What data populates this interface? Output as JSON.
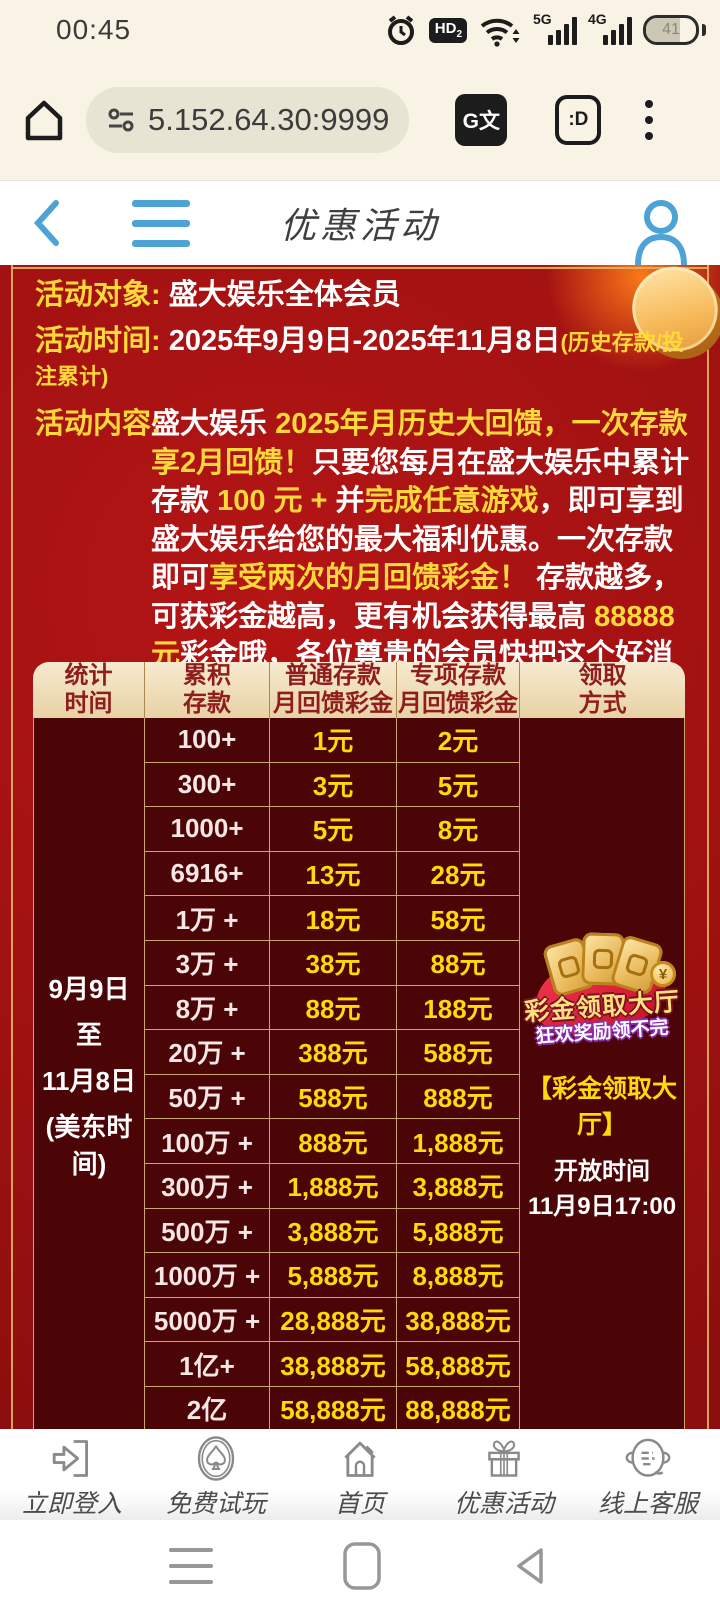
{
  "status_bar": {
    "time": "00:45",
    "hd": "HD",
    "hd_sub": "2",
    "net_a": "5G",
    "net_b": "4G",
    "battery": "41"
  },
  "browser": {
    "url": "5.152.64.30:9999",
    "translate": "G文",
    "tab_count": ":D"
  },
  "page_header": {
    "title": "优惠活动"
  },
  "promo": {
    "target_label": "活动对象:",
    "target_value": "盛大娱乐全体会员",
    "time_label": "活动时间:",
    "time_value": "2025年9月9日-2025年11月8日",
    "time_note": "(历史存款/投注累计)",
    "content_label": "活动内容:",
    "content_segments": [
      {
        "text": "盛大娱乐 ",
        "hl": false
      },
      {
        "text": "2025年月历史大回馈，一次存款享2月回馈！",
        "hl": true
      },
      {
        "text": "只要您每月在盛大娱乐中累计存款 ",
        "hl": false
      },
      {
        "text": "100 元 +",
        "hl": true
      },
      {
        "text": " 并",
        "hl": false
      },
      {
        "text": "完成任意游戏",
        "hl": true
      },
      {
        "text": "，即可享到盛大娱乐给您的最大福利优惠。一次存款即可",
        "hl": false
      },
      {
        "text": "享受两次的月回馈彩金！",
        "hl": true
      },
      {
        "text": " 存款越多，可获彩金越高，更有机会获得最高 ",
        "hl": false
      },
      {
        "text": "88888 元",
        "hl": true
      },
      {
        "text": "彩金哦，各位尊贵的会员快把这个好消息告诉您身边的朋友吧，精彩优惠千万不要错过。",
        "hl": false
      }
    ]
  },
  "table": {
    "headers": [
      "统计\n时间",
      "累积\n存款",
      "普通存款\n月回馈彩金",
      "专项存款\n月回馈彩金",
      "领取\n方式"
    ],
    "period": [
      "9月9日",
      "至",
      "11月8日",
      "(美东时间)"
    ],
    "rows": [
      {
        "deposit": "100+",
        "normal": "1元",
        "special": "2元"
      },
      {
        "deposit": "300+",
        "normal": "3元",
        "special": "5元"
      },
      {
        "deposit": "1000+",
        "normal": "5元",
        "special": "8元"
      },
      {
        "deposit": "6916+",
        "normal": "13元",
        "special": "28元"
      },
      {
        "deposit": "1万 +",
        "normal": "18元",
        "special": "58元"
      },
      {
        "deposit": "3万 +",
        "normal": "38元",
        "special": "88元"
      },
      {
        "deposit": "8万 +",
        "normal": "88元",
        "special": "188元"
      },
      {
        "deposit": "20万 +",
        "normal": "388元",
        "special": "588元"
      },
      {
        "deposit": "50万 +",
        "normal": "588元",
        "special": "888元"
      },
      {
        "deposit": "100万 +",
        "normal": "888元",
        "special": "1,888元"
      },
      {
        "deposit": "300万 +",
        "normal": "1,888元",
        "special": "3,888元"
      },
      {
        "deposit": "500万 +",
        "normal": "3,888元",
        "special": "5,888元"
      },
      {
        "deposit": "1000万 +",
        "normal": "5,888元",
        "special": "8,888元"
      },
      {
        "deposit": "5000万 +",
        "normal": "28,888元",
        "special": "38,888元"
      },
      {
        "deposit": "1亿+",
        "normal": "38,888元",
        "special": "58,888元"
      },
      {
        "deposit": "2亿",
        "normal": "58,888元",
        "special": "88,888元"
      }
    ],
    "claim": {
      "badge_line1": "彩金领取大厅",
      "badge_line2": "狂欢奖励领不完",
      "coin_symbol": "¥",
      "title": "【彩金领取大厅】",
      "open_label": "开放时间",
      "open_time": "11月9日17:00"
    }
  },
  "bottom_nav": {
    "items": [
      {
        "label": "立即登入"
      },
      {
        "label": "免费试玩"
      },
      {
        "label": "首页"
      },
      {
        "label": "优惠活动"
      },
      {
        "label": "线上客服"
      }
    ]
  },
  "colors": {
    "accent_blue": "#4da3d6",
    "gold": "#ffd83a",
    "yellow": "#ffd90a",
    "red_bg": "#a01111",
    "maroon": "#4c0506"
  }
}
